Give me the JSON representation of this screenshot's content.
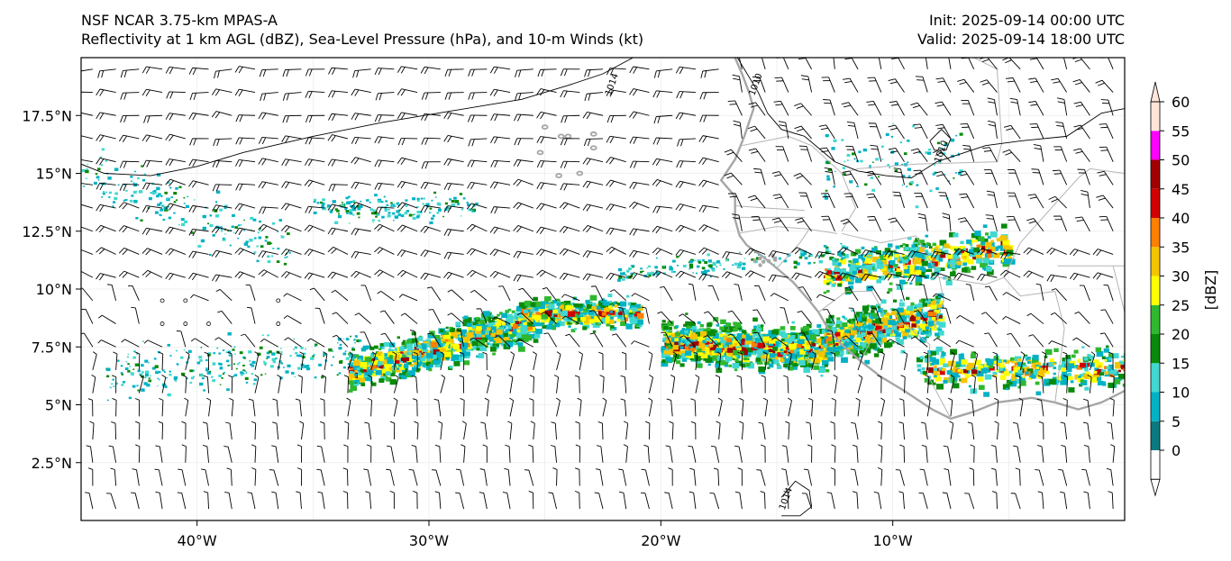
{
  "header": {
    "model_name": "NSF NCAR 3.75-km MPAS-A",
    "fields_description": "Reflectivity at 1 km AGL (dBZ), Sea-Level Pressure (hPa), and 10-m Winds (kt)",
    "init_time": "Init: 2025-09-14 00:00 UTC",
    "valid_time": "Valid: 2025-09-14 18:00 UTC"
  },
  "map": {
    "lon_range": [
      -45,
      0
    ],
    "lat_range": [
      0,
      20
    ],
    "lon_ticks": [
      {
        "value": -40,
        "label": "40°W"
      },
      {
        "value": -30,
        "label": "30°W"
      },
      {
        "value": -20,
        "label": "20°W"
      },
      {
        "value": -10,
        "label": "10°W"
      }
    ],
    "lat_ticks": [
      {
        "value": 2.5,
        "label": "2.5°N"
      },
      {
        "value": 5,
        "label": "5°N"
      },
      {
        "value": 7.5,
        "label": "7.5°N"
      },
      {
        "value": 10,
        "label": "10°N"
      },
      {
        "value": 12.5,
        "label": "12.5°N"
      },
      {
        "value": 15,
        "label": "15°N"
      },
      {
        "value": 17.5,
        "label": "17.5°N"
      }
    ],
    "contour_labels": [
      {
        "text": "1014",
        "lon": -22.0,
        "lat": 18.8
      },
      {
        "text": "1010",
        "lon": -15.8,
        "lat": 18.8
      },
      {
        "text": "1010",
        "lon": -7.8,
        "lat": 15.9
      },
      {
        "text": "1014",
        "lon": -14.5,
        "lat": 0.9
      }
    ],
    "coast_color": "#a6a6a6",
    "border_color": "#b4b4b4",
    "contour_color": "#000000"
  },
  "colorbar": {
    "unit_label": "[dBZ]",
    "levels": [
      0,
      5,
      10,
      15,
      20,
      25,
      30,
      35,
      40,
      45,
      50,
      55,
      60
    ],
    "tick_labels": [
      "0",
      "5",
      "10",
      "15",
      "20",
      "25",
      "30",
      "35",
      "40",
      "45",
      "50",
      "55",
      "60"
    ],
    "colors": [
      "#ffffff",
      "#0b7a80",
      "#00b2c4",
      "#40d8d0",
      "#0a8a0a",
      "#2fb82f",
      "#ffff00",
      "#f5c400",
      "#ff7f00",
      "#d20000",
      "#a00000",
      "#ff00ff",
      "#ffe4d8"
    ]
  }
}
